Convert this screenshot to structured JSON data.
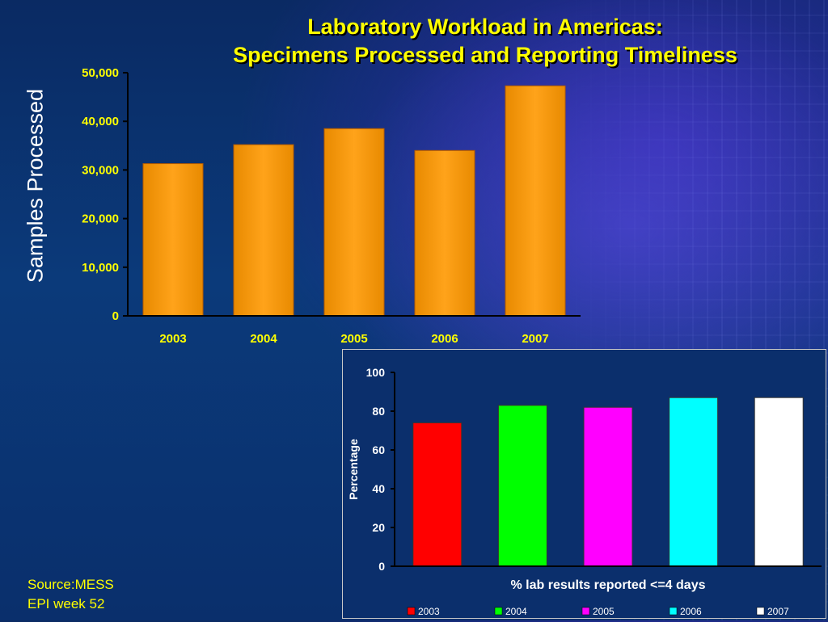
{
  "title": {
    "line1": "Laboratory Workload in Americas:",
    "line2": "Specimens Processed and Reporting Timeliness"
  },
  "source": {
    "line1": "Source:MESS",
    "line2": "EPI week 52"
  },
  "chart_data": [
    {
      "type": "bar",
      "categories": [
        "2003",
        "2004",
        "2005",
        "2006",
        "2007"
      ],
      "values": [
        31300,
        35200,
        38500,
        34000,
        47300
      ],
      "title": "",
      "xlabel": "",
      "ylabel": "Samples Processed",
      "ylim": [
        0,
        50000
      ],
      "yticks": [
        "0",
        "10,000",
        "20,000",
        "30,000",
        "40,000",
        "50,000"
      ],
      "bar_color": "#ff9900",
      "tick_color": "#ffff00",
      "grid": false
    },
    {
      "type": "bar",
      "categories": [
        "2003",
        "2004",
        "2005",
        "2006",
        "2007"
      ],
      "values": [
        74,
        83,
        82,
        87,
        87
      ],
      "title": "",
      "xlabel": "% lab results reported <=4 days",
      "ylabel": "Percentage",
      "ylim": [
        0,
        100
      ],
      "yticks": [
        "0",
        "20",
        "40",
        "60",
        "80",
        "100"
      ],
      "colors": [
        "#ff0000",
        "#00ff00",
        "#ff00ff",
        "#00ffff",
        "#ffffff"
      ],
      "legend": [
        "2003",
        "2004",
        "2005",
        "2006",
        "2007"
      ],
      "legend_position": "bottom",
      "grid": false
    }
  ]
}
